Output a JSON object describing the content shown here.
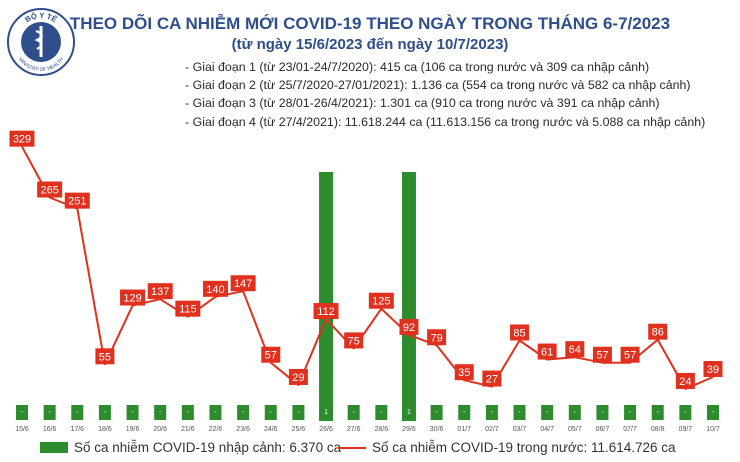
{
  "logo": {
    "top_text": "BỘ Y TẾ",
    "bottom_text": "MINISTRY OF HEALTH",
    "color": "#2f4e8c"
  },
  "header": {
    "title": "THEO DÕI CA NHIỄM MỚI COVID-19 THEO NGÀY TRONG THÁNG 6-7/2023",
    "subtitle": "(từ ngày 15/6/2023 đến ngày 10/7/2023)"
  },
  "notes": [
    "- Giai đoạn 1 (từ 23/01-24/7/2020): 415 ca (106 ca trong nước và 309 ca nhập cảnh)",
    "- Giai đoạn 2 (từ 25/7/2020-27/01/2021): 1.136 ca (554 ca trong nước và 582 ca nhập cảnh)",
    "- Giai đoạn 3 (từ 28/01-26/4/2021): 1.301 ca (910 ca trong nước và 391 ca nhập cảnh)",
    "- Giai đoạn 4 (từ 27/4/2021): 11.618.244 ca (11.613.156 ca trong nước và 5.088 ca nhập cảnh)"
  ],
  "chart_data": {
    "type": "bar+line",
    "categories": [
      "15/6",
      "16/6",
      "17/6",
      "18/6",
      "19/6",
      "20/6",
      "21/6",
      "22/6",
      "23/6",
      "24/6",
      "25/6",
      "26/6",
      "27/6",
      "28/6",
      "29/6",
      "30/6",
      "01/7",
      "02/7",
      "03/7",
      "04/7",
      "05/7",
      "06/7",
      "07/7",
      "08/8",
      "09/7",
      "10/7"
    ],
    "series": [
      {
        "name": "Số ca nhiễm COVID-19 nhập cảnh: 6.370 ca",
        "kind": "bar",
        "color": "#2e8b2e",
        "values": [
          0,
          0,
          0,
          0,
          0,
          0,
          0,
          0,
          0,
          0,
          0,
          1,
          0,
          0,
          1,
          0,
          0,
          0,
          0,
          0,
          0,
          0,
          0,
          0,
          0,
          0
        ]
      },
      {
        "name": "Số ca nhiễm COVID-19 trong nước: 11.614.726 ca",
        "kind": "line",
        "color": "#e0301e",
        "values": [
          329,
          265,
          251,
          55,
          129,
          137,
          115,
          140,
          147,
          57,
          29,
          112,
          75,
          125,
          92,
          79,
          35,
          27,
          85,
          61,
          64,
          57,
          57,
          86,
          24,
          39
        ]
      }
    ],
    "ylim": [
      0,
      350
    ],
    "grid": false,
    "legend_position": "bottom"
  }
}
